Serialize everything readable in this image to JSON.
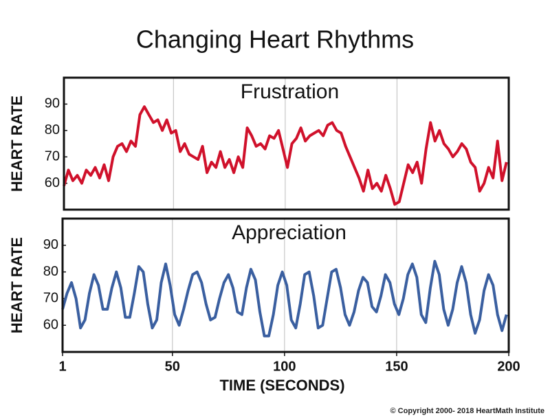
{
  "title": "Changing Heart Rhythms",
  "footer": "© Copyright 2000- 2018 HeartMath Institute",
  "chart_data": [
    {
      "type": "line",
      "title": "Frustration",
      "ylabel": "HEART RATE",
      "xlim": [
        1,
        200
      ],
      "xticks": [
        1,
        50,
        100,
        150,
        200
      ],
      "ylim": [
        50,
        100
      ],
      "yticks": [
        60,
        70,
        80,
        90
      ],
      "grid": true,
      "x": [
        1,
        3,
        5,
        7,
        9,
        11,
        13,
        15,
        17,
        19,
        21,
        23,
        25,
        27,
        29,
        31,
        33,
        35,
        37,
        39,
        41,
        43,
        45,
        47,
        49,
        51,
        53,
        55,
        57,
        59,
        61,
        63,
        65,
        67,
        69,
        71,
        73,
        75,
        77,
        79,
        81,
        83,
        85,
        87,
        89,
        91,
        93,
        95,
        97,
        99,
        101,
        103,
        105,
        107,
        109,
        111,
        113,
        115,
        117,
        119,
        121,
        123,
        125,
        127,
        129,
        131,
        133,
        135,
        137,
        139,
        141,
        143,
        145,
        147,
        149,
        151,
        153,
        155,
        157,
        159,
        161,
        163,
        165,
        167,
        169,
        171,
        173,
        175,
        177,
        179,
        181,
        183,
        185,
        187,
        189,
        191,
        193,
        195,
        197,
        199
      ],
      "series": [
        {
          "name": "Frustration",
          "color": "#d0112b",
          "values": [
            59,
            65,
            61,
            63,
            60,
            65,
            63,
            66,
            62,
            67,
            61,
            70,
            74,
            75,
            72,
            76,
            74,
            86,
            89,
            86,
            83,
            84,
            80,
            84,
            79,
            80,
            72,
            75,
            71,
            70,
            69,
            74,
            64,
            68,
            66,
            72,
            66,
            69,
            64,
            70,
            66,
            81,
            78,
            74,
            75,
            73,
            78,
            77,
            80,
            73,
            66,
            75,
            77,
            81,
            76,
            78,
            79,
            80,
            78,
            82,
            83,
            80,
            79,
            74,
            70,
            66,
            62,
            57,
            65,
            58,
            60,
            57,
            63,
            58,
            52,
            53,
            60,
            67,
            64,
            68,
            60,
            73,
            83,
            76,
            80,
            75,
            73,
            70,
            72,
            75,
            73,
            68,
            66,
            57,
            60,
            66,
            62,
            76,
            61,
            68
          ]
        }
      ]
    },
    {
      "type": "line",
      "title": "Appreciation",
      "ylabel": "HEART RATE",
      "xlabel": "TIME (SECONDS)",
      "xlim": [
        1,
        200
      ],
      "xticks": [
        1,
        50,
        100,
        150,
        200
      ],
      "ylim": [
        50,
        100
      ],
      "yticks": [
        60,
        70,
        80,
        90
      ],
      "grid": true,
      "x": [
        1,
        3,
        5,
        7,
        9,
        11,
        13,
        15,
        17,
        19,
        21,
        23,
        25,
        27,
        29,
        31,
        33,
        35,
        37,
        39,
        41,
        43,
        45,
        47,
        49,
        51,
        53,
        55,
        57,
        59,
        61,
        63,
        65,
        67,
        69,
        71,
        73,
        75,
        77,
        79,
        81,
        83,
        85,
        87,
        89,
        91,
        93,
        95,
        97,
        99,
        101,
        103,
        105,
        107,
        109,
        111,
        113,
        115,
        117,
        119,
        121,
        123,
        125,
        127,
        129,
        131,
        133,
        135,
        137,
        139,
        141,
        143,
        145,
        147,
        149,
        151,
        153,
        155,
        157,
        159,
        161,
        163,
        165,
        167,
        169,
        171,
        173,
        175,
        177,
        179,
        181,
        183,
        185,
        187,
        189,
        191,
        193,
        195,
        197,
        199
      ],
      "series": [
        {
          "name": "Appreciation",
          "color": "#3a5fa0",
          "values": [
            66,
            72,
            76,
            70,
            59,
            62,
            72,
            79,
            75,
            66,
            66,
            74,
            80,
            74,
            63,
            63,
            72,
            82,
            80,
            68,
            59,
            62,
            76,
            83,
            75,
            64,
            60,
            66,
            73,
            79,
            80,
            76,
            68,
            62,
            63,
            70,
            76,
            79,
            74,
            65,
            64,
            74,
            81,
            77,
            65,
            56,
            56,
            64,
            75,
            80,
            75,
            62,
            59,
            68,
            79,
            80,
            71,
            59,
            60,
            70,
            80,
            81,
            74,
            64,
            60,
            65,
            73,
            78,
            76,
            67,
            65,
            71,
            79,
            76,
            68,
            64,
            70,
            79,
            83,
            78,
            64,
            61,
            74,
            84,
            79,
            66,
            60,
            66,
            76,
            82,
            76,
            64,
            57,
            62,
            73,
            79,
            75,
            64,
            58,
            64
          ]
        }
      ]
    }
  ]
}
